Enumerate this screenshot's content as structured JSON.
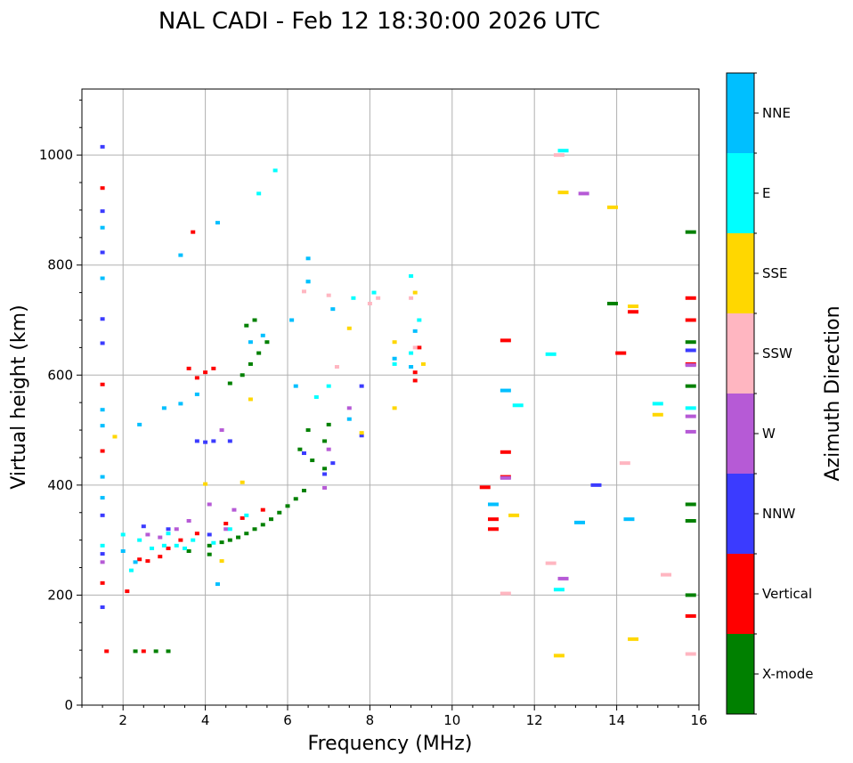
{
  "chart_data": {
    "type": "scatter",
    "title": "NAL CADI - Feb 12 18:30:00 2026 UTC",
    "xlabel": "Frequency (MHz)",
    "ylabel": "Virtual height (km)",
    "xlim": [
      1,
      16
    ],
    "ylim": [
      0,
      1120
    ],
    "xticks": [
      2,
      4,
      6,
      8,
      10,
      12,
      14,
      16
    ],
    "yticks": [
      0,
      200,
      400,
      600,
      800,
      1000
    ],
    "grid": true,
    "colorbar": {
      "label": "Azimuth Direction",
      "placement": "right",
      "categories": [
        {
          "name": "X-mode",
          "color": "#008000"
        },
        {
          "name": "Vertical",
          "color": "#ff0000"
        },
        {
          "name": "NNW",
          "color": "#3b3bff"
        },
        {
          "name": "W",
          "color": "#b65ad6"
        },
        {
          "name": "SSW",
          "color": "#ffb6c1"
        },
        {
          "name": "SSE",
          "color": "#ffd700"
        },
        {
          "name": "E",
          "color": "#00ffff"
        },
        {
          "name": "NNE",
          "color": "#00bfff"
        }
      ]
    },
    "series": [
      {
        "name": "X-mode",
        "points": [
          [
            4.1,
            274
          ],
          [
            4.1,
            290
          ],
          [
            4.4,
            296
          ],
          [
            4.6,
            300
          ],
          [
            4.8,
            305
          ],
          [
            5.0,
            312
          ],
          [
            5.2,
            320
          ],
          [
            5.4,
            328
          ],
          [
            5.6,
            338
          ],
          [
            5.8,
            350
          ],
          [
            6.0,
            362
          ],
          [
            6.2,
            375
          ],
          [
            6.4,
            390
          ],
          [
            6.3,
            465
          ],
          [
            6.5,
            500
          ],
          [
            6.6,
            445
          ],
          [
            6.9,
            430
          ],
          [
            6.9,
            480
          ],
          [
            7.0,
            510
          ],
          [
            4.6,
            585
          ],
          [
            4.9,
            600
          ],
          [
            5.1,
            620
          ],
          [
            5.3,
            640
          ],
          [
            5.5,
            660
          ],
          [
            5.0,
            690
          ],
          [
            5.2,
            700
          ],
          [
            2.3,
            98
          ],
          [
            2.8,
            98
          ],
          [
            3.1,
            98
          ],
          [
            3.6,
            280
          ],
          [
            15.8,
            860
          ],
          [
            15.8,
            660
          ],
          [
            15.8,
            580
          ],
          [
            15.8,
            365
          ],
          [
            15.8,
            335
          ],
          [
            15.8,
            200
          ],
          [
            13.9,
            730
          ]
        ]
      },
      {
        "name": "Vertical",
        "points": [
          [
            1.5,
            222
          ],
          [
            2.1,
            207
          ],
          [
            2.4,
            265
          ],
          [
            2.6,
            262
          ],
          [
            2.9,
            270
          ],
          [
            3.1,
            285
          ],
          [
            3.4,
            300
          ],
          [
            3.8,
            312
          ],
          [
            4.5,
            330
          ],
          [
            4.9,
            340
          ],
          [
            5.4,
            355
          ],
          [
            3.8,
            595
          ],
          [
            4.0,
            605
          ],
          [
            4.2,
            612
          ],
          [
            3.6,
            612
          ],
          [
            3.7,
            860
          ],
          [
            9.1,
            590
          ],
          [
            9.1,
            605
          ],
          [
            9.2,
            650
          ],
          [
            11.0,
            320
          ],
          [
            11.0,
            338
          ],
          [
            10.8,
            396
          ],
          [
            14.1,
            640
          ],
          [
            14.4,
            715
          ],
          [
            15.8,
            740
          ],
          [
            15.8,
            700
          ],
          [
            15.8,
            620
          ],
          [
            15.8,
            162
          ],
          [
            1.5,
            583
          ],
          [
            1.5,
            462
          ],
          [
            1.5,
            940
          ],
          [
            2.5,
            98
          ],
          [
            1.6,
            98
          ],
          [
            11.3,
            663
          ],
          [
            11.3,
            460
          ],
          [
            11.3,
            415
          ]
        ]
      },
      {
        "name": "NNW",
        "points": [
          [
            1.5,
            1015
          ],
          [
            1.5,
            898
          ],
          [
            1.5,
            823
          ],
          [
            1.5,
            702
          ],
          [
            1.5,
            658
          ],
          [
            1.5,
            345
          ],
          [
            1.5,
            178
          ],
          [
            2.5,
            325
          ],
          [
            3.1,
            320
          ],
          [
            4.1,
            310
          ],
          [
            6.4,
            458
          ],
          [
            6.9,
            420
          ],
          [
            7.1,
            440
          ],
          [
            7.8,
            580
          ],
          [
            7.8,
            490
          ],
          [
            4.0,
            478
          ],
          [
            4.2,
            480
          ],
          [
            4.6,
            480
          ],
          [
            3.8,
            480
          ],
          [
            13.5,
            400
          ],
          [
            15.8,
            645
          ],
          [
            1.5,
            275
          ]
        ]
      },
      {
        "name": "W",
        "points": [
          [
            1.5,
            260
          ],
          [
            2.6,
            310
          ],
          [
            2.9,
            305
          ],
          [
            3.3,
            320
          ],
          [
            3.6,
            335
          ],
          [
            4.5,
            320
          ],
          [
            4.7,
            355
          ],
          [
            6.9,
            395
          ],
          [
            7.0,
            465
          ],
          [
            7.5,
            540
          ],
          [
            13.2,
            930
          ],
          [
            12.7,
            230
          ],
          [
            15.8,
            618
          ],
          [
            15.8,
            525
          ],
          [
            15.8,
            497
          ],
          [
            11.3,
            413
          ],
          [
            4.4,
            500
          ],
          [
            4.1,
            365
          ]
        ]
      },
      {
        "name": "SSW",
        "points": [
          [
            6.4,
            752
          ],
          [
            7.0,
            745
          ],
          [
            8.0,
            730
          ],
          [
            9.0,
            740
          ],
          [
            9.1,
            650
          ],
          [
            11.3,
            203
          ],
          [
            12.4,
            258
          ],
          [
            14.2,
            440
          ],
          [
            15.2,
            237
          ],
          [
            15.8,
            93
          ],
          [
            7.2,
            615
          ],
          [
            8.2,
            740
          ],
          [
            12.6,
            1000
          ]
        ]
      },
      {
        "name": "SSE",
        "points": [
          [
            1.8,
            488
          ],
          [
            4.0,
            402
          ],
          [
            4.4,
            262
          ],
          [
            4.9,
            405
          ],
          [
            7.5,
            685
          ],
          [
            8.6,
            660
          ],
          [
            8.6,
            540
          ],
          [
            9.1,
            750
          ],
          [
            9.3,
            620
          ],
          [
            11.5,
            345
          ],
          [
            12.7,
            932
          ],
          [
            13.9,
            905
          ],
          [
            14.4,
            725
          ],
          [
            15.0,
            528
          ],
          [
            12.6,
            90
          ],
          [
            14.4,
            120
          ],
          [
            5.1,
            556
          ],
          [
            7.8,
            495
          ]
        ]
      },
      {
        "name": "E",
        "points": [
          [
            1.5,
            290
          ],
          [
            2.0,
            310
          ],
          [
            2.2,
            245
          ],
          [
            2.4,
            300
          ],
          [
            2.7,
            285
          ],
          [
            3.0,
            290
          ],
          [
            3.3,
            290
          ],
          [
            3.5,
            285
          ],
          [
            3.7,
            300
          ],
          [
            4.2,
            295
          ],
          [
            4.6,
            320
          ],
          [
            5.0,
            345
          ],
          [
            5.7,
            972
          ],
          [
            5.3,
            930
          ],
          [
            6.5,
            770
          ],
          [
            7.6,
            740
          ],
          [
            8.1,
            750
          ],
          [
            8.6,
            620
          ],
          [
            9.0,
            780
          ],
          [
            9.0,
            640
          ],
          [
            9.2,
            700
          ],
          [
            11.6,
            545
          ],
          [
            12.4,
            638
          ],
          [
            12.7,
            1008
          ],
          [
            12.6,
            210
          ],
          [
            15.0,
            548
          ],
          [
            15.8,
            540
          ],
          [
            6.7,
            560
          ],
          [
            7.0,
            580
          ],
          [
            3.1,
            312
          ]
        ]
      },
      {
        "name": "NNE",
        "points": [
          [
            1.5,
            868
          ],
          [
            1.5,
            776
          ],
          [
            1.5,
            537
          ],
          [
            1.5,
            508
          ],
          [
            1.5,
            415
          ],
          [
            1.5,
            377
          ],
          [
            2.0,
            280
          ],
          [
            2.3,
            260
          ],
          [
            3.0,
            540
          ],
          [
            3.4,
            548
          ],
          [
            3.8,
            565
          ],
          [
            4.3,
            877
          ],
          [
            3.4,
            818
          ],
          [
            5.1,
            660
          ],
          [
            5.4,
            672
          ],
          [
            6.1,
            700
          ],
          [
            6.5,
            812
          ],
          [
            6.5,
            770
          ],
          [
            6.2,
            580
          ],
          [
            7.1,
            720
          ],
          [
            7.5,
            520
          ],
          [
            8.6,
            630
          ],
          [
            9.0,
            615
          ],
          [
            9.1,
            680
          ],
          [
            11.0,
            365
          ],
          [
            11.3,
            572
          ],
          [
            14.3,
            338
          ],
          [
            13.1,
            332
          ],
          [
            4.3,
            220
          ],
          [
            2.4,
            510
          ]
        ]
      }
    ]
  }
}
